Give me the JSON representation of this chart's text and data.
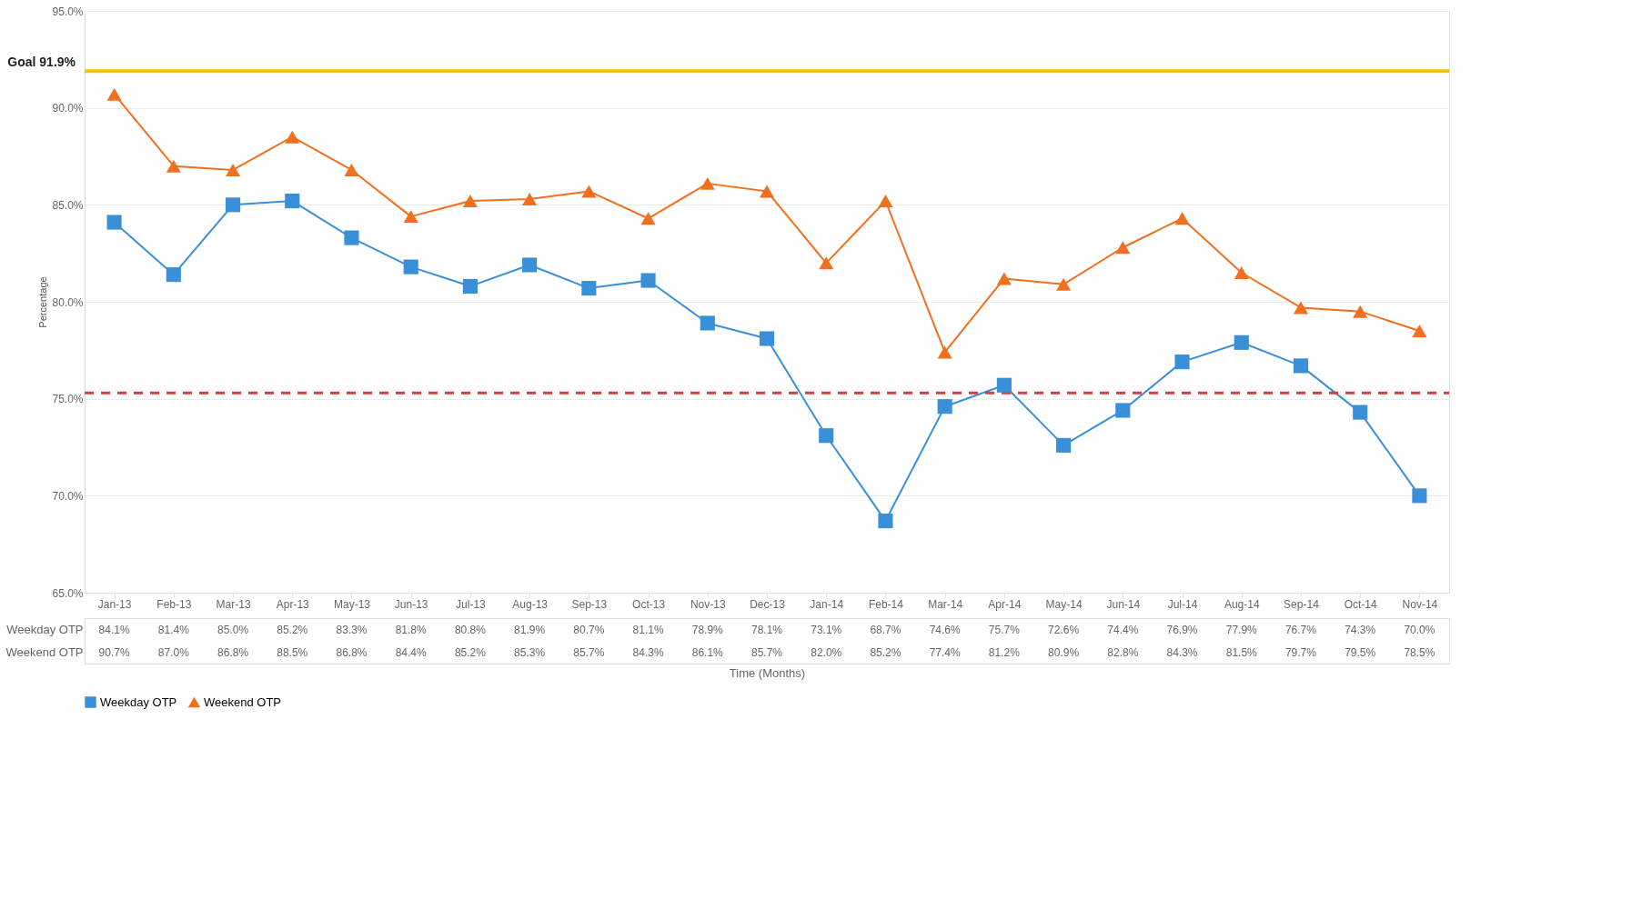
{
  "chart_data": {
    "type": "line",
    "ylabel": "Percentage",
    "xlabel": "Time (Months)",
    "categories": [
      "Jan-13",
      "Feb-13",
      "Mar-13",
      "Apr-13",
      "May-13",
      "Jun-13",
      "Jul-13",
      "Aug-13",
      "Sep-13",
      "Oct-13",
      "Nov-13",
      "Dec-13",
      "Jan-14",
      "Feb-14",
      "Mar-14",
      "Apr-14",
      "May-14",
      "Jun-14",
      "Jul-14",
      "Aug-14",
      "Sep-14",
      "Oct-14",
      "Nov-14"
    ],
    "series": [
      {
        "name": "Weekday OTP",
        "color": "#3a8fd9",
        "marker": "square",
        "values": [
          84.1,
          81.4,
          85.0,
          85.2,
          83.3,
          81.8,
          80.8,
          81.9,
          80.7,
          81.1,
          78.9,
          78.1,
          73.1,
          68.7,
          74.6,
          75.7,
          72.6,
          74.4,
          76.9,
          77.9,
          76.7,
          74.3,
          70.0
        ],
        "value_labels": [
          "84.1%",
          "81.4%",
          "85.0%",
          "85.2%",
          "83.3%",
          "81.8%",
          "80.8%",
          "81.9%",
          "80.7%",
          "81.1%",
          "78.9%",
          "78.1%",
          "73.1%",
          "68.7%",
          "74.6%",
          "75.7%",
          "72.6%",
          "74.4%",
          "76.9%",
          "77.9%",
          "76.7%",
          "74.3%",
          "70.0%"
        ]
      },
      {
        "name": "Weekend OTP",
        "color": "#f07020",
        "marker": "triangle",
        "values": [
          90.7,
          87.0,
          86.8,
          88.5,
          86.8,
          84.4,
          85.2,
          85.3,
          85.7,
          84.3,
          86.1,
          85.7,
          82.0,
          85.2,
          77.4,
          81.2,
          80.9,
          82.8,
          84.3,
          81.5,
          79.7,
          79.5,
          78.5
        ],
        "value_labels": [
          "90.7%",
          "87.0%",
          "86.8%",
          "88.5%",
          "86.8%",
          "84.4%",
          "85.2%",
          "85.3%",
          "85.7%",
          "84.3%",
          "86.1%",
          "85.7%",
          "82.0%",
          "85.2%",
          "77.4%",
          "81.2%",
          "80.9%",
          "82.8%",
          "84.3%",
          "81.5%",
          "79.7%",
          "79.5%",
          "78.5%"
        ]
      }
    ],
    "ylim": [
      65,
      95
    ],
    "yticks": [
      {
        "value": 65,
        "label": "65.0%"
      },
      {
        "value": 70,
        "label": "70.0%"
      },
      {
        "value": 75,
        "label": "75.0%"
      },
      {
        "value": 80,
        "label": "80.0%"
      },
      {
        "value": 85,
        "label": "85.0%"
      },
      {
        "value": 90,
        "label": "90.0%"
      },
      {
        "value": 95,
        "label": "95.0%"
      }
    ],
    "ref_lines": [
      {
        "axis": "y",
        "value": 91.9,
        "label": "Goal 91.9%",
        "color": "#f5c400",
        "line_style": "solid"
      },
      {
        "axis": "y",
        "value": 75.3,
        "color": "#d04040",
        "line_style": "dashed"
      }
    ],
    "grid": "y",
    "legend": "bottom",
    "line_style": "solid"
  }
}
